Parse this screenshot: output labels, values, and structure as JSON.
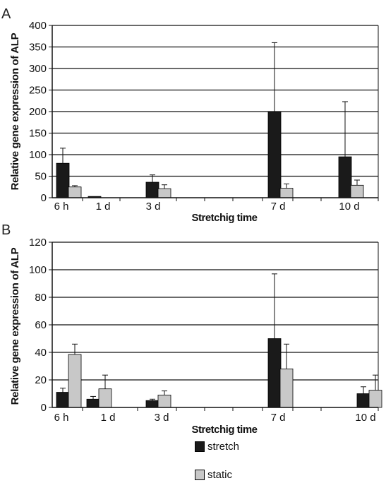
{
  "chart_data": [
    {
      "type": "bar",
      "panel": "A",
      "categories": [
        "6 h",
        "1 d",
        "3 d",
        "7 d",
        "10 d"
      ],
      "series": [
        {
          "name": "stretch",
          "values": [
            80,
            3,
            36,
            200,
            95
          ],
          "errors": [
            35,
            0,
            17,
            160,
            128
          ],
          "color": "#1a1a1a"
        },
        {
          "name": "static",
          "values": [
            25,
            0,
            21,
            22,
            29
          ],
          "errors": [
            3,
            0,
            9,
            10,
            12
          ],
          "color": "#c8c8c8"
        }
      ],
      "xlabel": "Stretchig time",
      "ylabel": "Relative gene expression of ALP",
      "ylim": [
        0,
        400
      ],
      "yticks": [
        0,
        50,
        100,
        150,
        200,
        250,
        300,
        350,
        400
      ],
      "grid": true
    },
    {
      "type": "bar",
      "panel": "B",
      "categories": [
        "6 h",
        "1 d",
        "3 d",
        "7 d",
        "10 d"
      ],
      "series": [
        {
          "name": "stretch",
          "values": [
            11,
            6,
            5,
            50,
            10
          ],
          "errors": [
            3,
            2,
            1,
            47,
            5
          ],
          "color": "#1a1a1a"
        },
        {
          "name": "static",
          "values": [
            38.5,
            13.5,
            9,
            28,
            12.5
          ],
          "errors": [
            7.5,
            10,
            3,
            18,
            11
          ],
          "color": "#c8c8c8"
        }
      ],
      "xlabel": "Stretchig time",
      "ylabel": "Relative gene expression of ALP",
      "ylim": [
        0,
        120
      ],
      "yticks": [
        0,
        20,
        40,
        60,
        80,
        100,
        120
      ],
      "grid": true
    }
  ],
  "legend": [
    {
      "label": "stretch",
      "color": "#1a1a1a"
    },
    {
      "label": "static",
      "color": "#c8c8c8"
    }
  ]
}
